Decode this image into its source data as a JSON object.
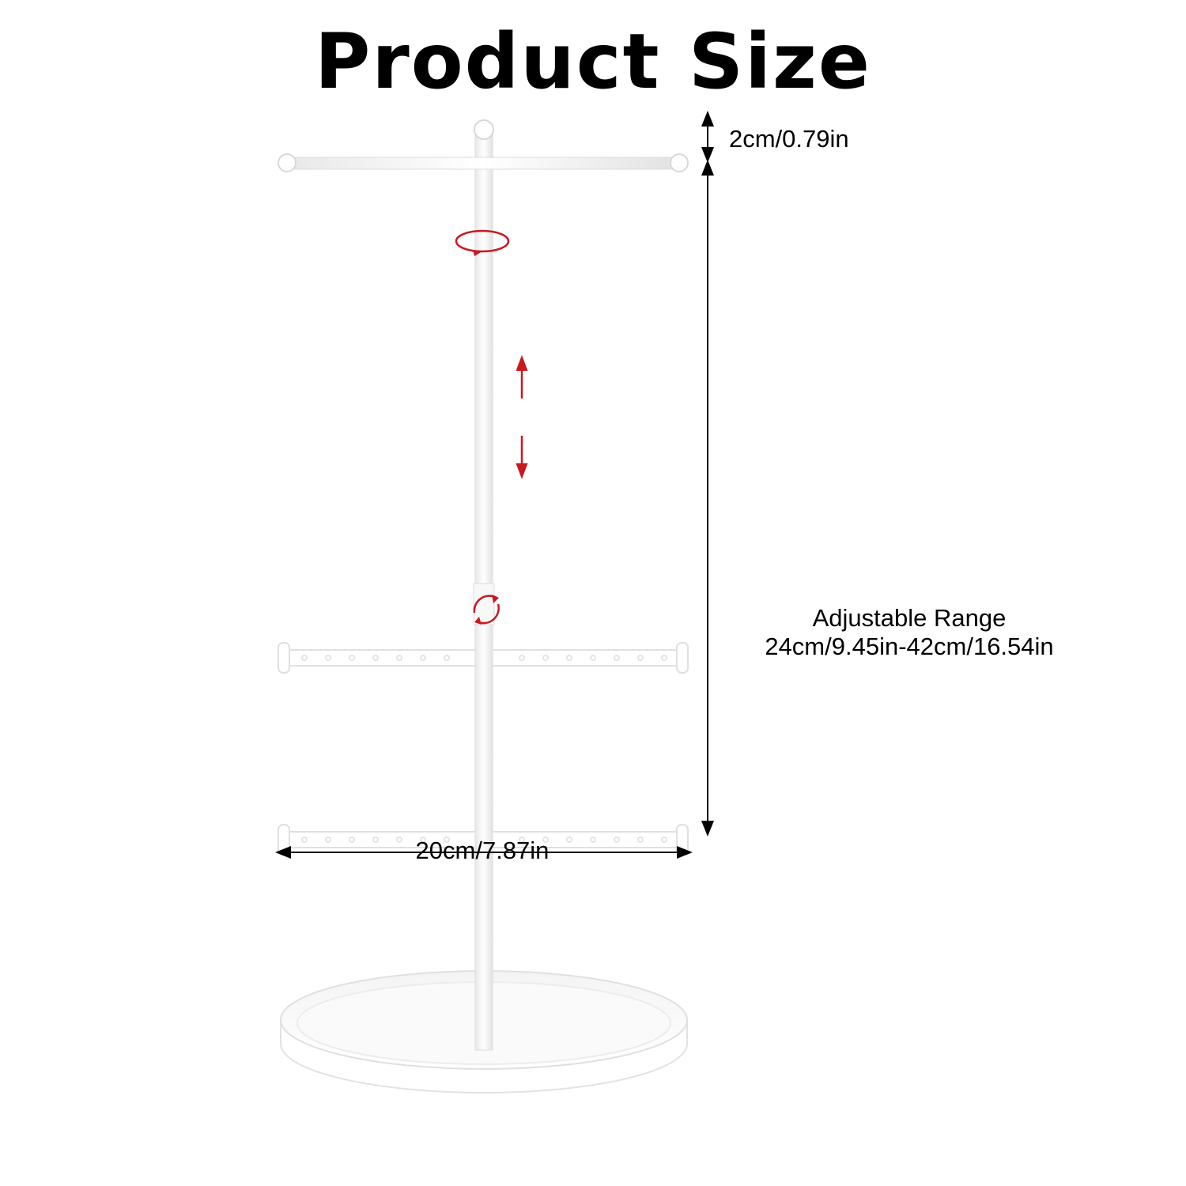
{
  "title": "Product Size",
  "dimensions": {
    "top_height": "2cm/0.79in",
    "adjustable_label": "Adjustable Range",
    "adjustable_value": "24cm/9.45in-42cm/16.54in",
    "base_width": "20cm/7.87in"
  },
  "colors": {
    "accent": "#c8191e",
    "product": "#ffffff",
    "product_shadow": "#e6e6e6"
  }
}
